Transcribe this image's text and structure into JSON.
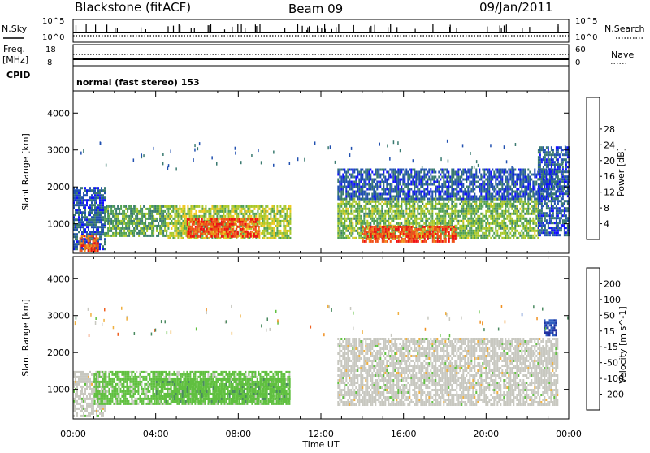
{
  "header": {
    "station": "Blackstone (fitACF)",
    "beam": "Beam 09",
    "date": "09/Jan/2011"
  },
  "status_panels": {
    "nsky_label": "N.Sky",
    "nsky_ticks": [
      "10^5",
      "10^0"
    ],
    "nsearch_label": "N.Search",
    "nsearch_ticks": [
      "10^5",
      "10^0"
    ],
    "freq_label_top": "Freq.",
    "freq_label_unit": "[MHz]",
    "freq_ticks": [
      "18",
      "8"
    ],
    "nave_label": "Nave",
    "nave_ticks": [
      "60",
      "0"
    ],
    "cpid_label": "CPID",
    "cpid_text": "normal (fast stereo) 153"
  },
  "axes": {
    "xlabel": "Time UT",
    "x_ticks": [
      "00:00",
      "04:00",
      "08:00",
      "12:00",
      "16:00",
      "20:00",
      "00:00"
    ],
    "ylabel": "Slant Range [km]",
    "y_ticks": [
      "1000",
      "2000",
      "3000",
      "4000"
    ]
  },
  "power_colorbar": {
    "label": "Power [dB]",
    "ticks": [
      "4",
      "8",
      "12",
      "16",
      "20",
      "24",
      "28"
    ],
    "colors": [
      "#1010ff",
      "#2050b0",
      "#3a7a70",
      "#50a050",
      "#a8c828",
      "#f0c820",
      "#f09018",
      "#f05018",
      "#f01010"
    ]
  },
  "velocity_colorbar": {
    "label": "Velocity [m s^-1]",
    "ticks": [
      "200",
      "100",
      "50",
      "15",
      "-15",
      "-50",
      "-100",
      "-200"
    ],
    "colors": [
      "#2030a0",
      "#3060c0",
      "#4a8a60",
      "#60c040",
      "#c8c8c0",
      "#f0b040",
      "#f09020",
      "#f06020",
      "#f01010"
    ]
  },
  "chart_data": {
    "type": "heatmap",
    "title": "Blackstone (fitACF) Beam 09 09/Jan/2011",
    "xlabel": "Time UT",
    "ylabel": "Slant Range [km]",
    "xlim": [
      0,
      24
    ],
    "ylim": [
      200,
      4600
    ],
    "panels": [
      {
        "name": "Power [dB]",
        "zlim": [
          0,
          32
        ],
        "regions": [
          {
            "t": [
              0.0,
              1.5
            ],
            "r": [
              300,
              2000
            ],
            "value": 6
          },
          {
            "t": [
              0.3,
              1.2
            ],
            "r": [
              300,
              700
            ],
            "value": 26
          },
          {
            "t": [
              1.5,
              4.5
            ],
            "r": [
              700,
              1500
            ],
            "value": 12
          },
          {
            "t": [
              4.5,
              10.5
            ],
            "r": [
              600,
              1500
            ],
            "value": 16
          },
          {
            "t": [
              5.5,
              9.0
            ],
            "r": [
              650,
              1150
            ],
            "value": 27
          },
          {
            "t": [
              12.8,
              22.5
            ],
            "r": [
              600,
              1700
            ],
            "value": 14
          },
          {
            "t": [
              14.0,
              18.5
            ],
            "r": [
              500,
              950
            ],
            "value": 27
          },
          {
            "t": [
              12.8,
              23.5
            ],
            "r": [
              1700,
              2500
            ],
            "value": 6
          },
          {
            "t": [
              22.5,
              24.0
            ],
            "r": [
              700,
              3100
            ],
            "value": 6
          }
        ]
      },
      {
        "name": "Velocity [m s-1]",
        "zlim": [
          -250,
          250
        ],
        "regions": [
          {
            "t": [
              0.0,
              1.5
            ],
            "r": [
              300,
              1500
            ],
            "value": 0
          },
          {
            "t": [
              1.0,
              10.5
            ],
            "r": [
              600,
              1500
            ],
            "value": -50
          },
          {
            "t": [
              4.0,
              10.5
            ],
            "r": [
              650,
              1300
            ],
            "value": -60
          },
          {
            "t": [
              12.8,
              23.5
            ],
            "r": [
              600,
              2400
            ],
            "value": 0
          },
          {
            "t": [
              22.8,
              23.4
            ],
            "r": [
              2500,
              2900
            ],
            "value": -200
          }
        ]
      }
    ]
  }
}
